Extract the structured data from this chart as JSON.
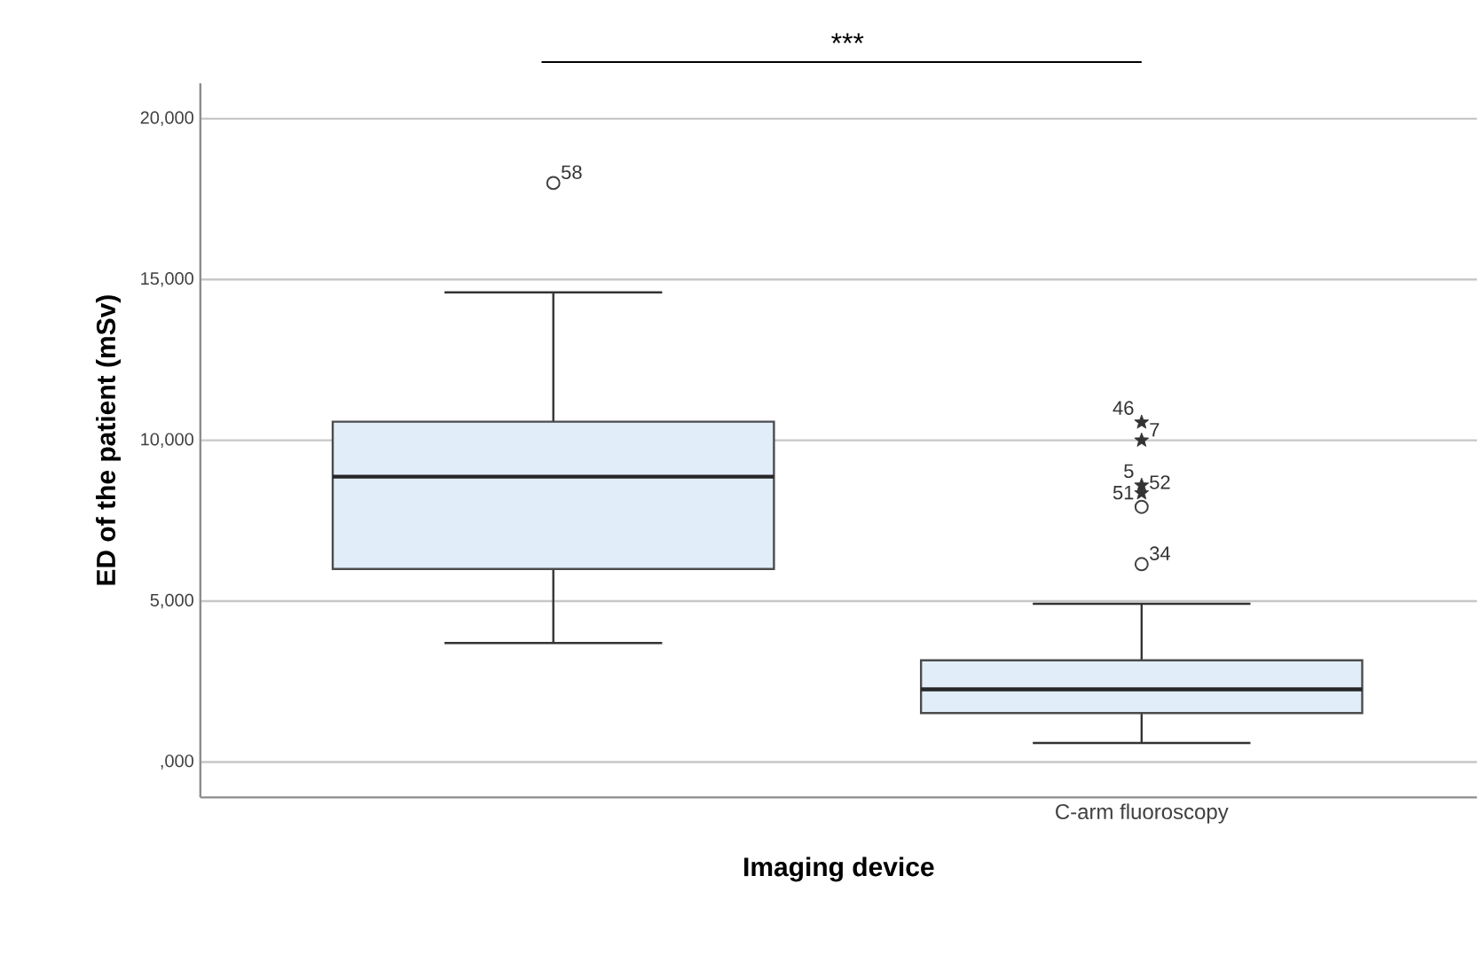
{
  "chart_data": {
    "type": "box",
    "xlabel": "Imaging device",
    "ylabel": "ED of the patient (mSv)",
    "categories": [
      null,
      "C-arm fluoroscopy"
    ],
    "boxes": [
      {
        "low": 3700,
        "q1": 6000,
        "median": 8870,
        "q3": 10580,
        "high": 14600,
        "outliers": [
          18000
        ]
      },
      {
        "low": 590,
        "q1": 1520,
        "median": 2260,
        "q3": 3160,
        "high": 4920,
        "outliers": [
          6150,
          7930
        ]
      }
    ],
    "color": "#e1edf9",
    "series": [
      {
        "type": "scatter",
        "marker": "star",
        "color": "#333333",
        "x": [
          "C-arm fluoroscopy",
          "C-arm fluoroscopy",
          "C-arm fluoroscopy",
          "C-arm fluoroscopy"
        ],
        "values": [
          8360,
          8600,
          10000,
          10560
        ]
      }
    ],
    "ylim": [
      -1100,
      21100
    ],
    "yticks": [
      {
        "value": 0,
        "label": ",000"
      },
      {
        "value": 5000,
        "label": "5,000"
      },
      {
        "value": 10000,
        "label": "10,000"
      },
      {
        "value": 15000,
        "label": "15,000"
      },
      {
        "value": 20000,
        "label": "20,000"
      }
    ],
    "grid": "y",
    "annotations": [
      "***",
      "58",
      "46",
      "7",
      "5",
      "52",
      "51",
      "34"
    ]
  }
}
